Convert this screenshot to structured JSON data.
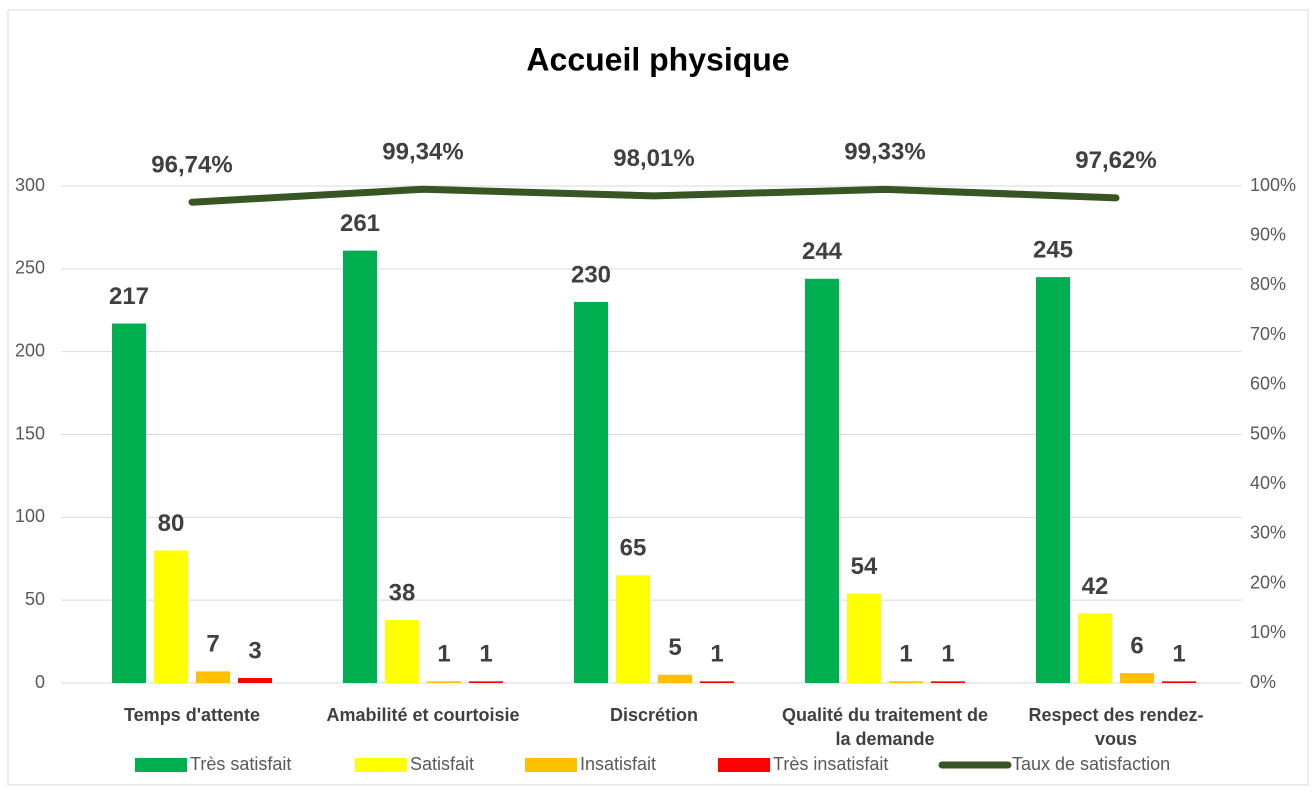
{
  "chart_data": {
    "type": "bar",
    "title": "Accueil physique",
    "categories": [
      "Temps d'attente",
      "Amabilité et courtoisie",
      "Discrétion",
      "Qualité du traitement de la demande",
      "Respect des rendez-vous"
    ],
    "series": [
      {
        "name": "Très satisfait",
        "color": "#00b050",
        "values": [
          217,
          261,
          230,
          244,
          245
        ]
      },
      {
        "name": "Satisfait",
        "color": "#ffff00",
        "values": [
          80,
          38,
          65,
          54,
          42
        ]
      },
      {
        "name": "Insatisfait",
        "color": "#ffc000",
        "values": [
          7,
          1,
          5,
          1,
          6
        ]
      },
      {
        "name": "Très insatisfait",
        "color": "#ff0000",
        "values": [
          3,
          1,
          1,
          1,
          1
        ]
      },
      {
        "name": "Taux de satisfaction",
        "color": "#375623",
        "type": "line",
        "axis": "y2",
        "values": [
          96.74,
          99.34,
          98.01,
          99.33,
          97.62
        ],
        "value_labels": [
          "96,74%",
          "99,34%",
          "98,01%",
          "99,33%",
          "97,62%"
        ]
      }
    ],
    "ylim": [
      0,
      300
    ],
    "yticks": [
      0,
      50,
      100,
      150,
      200,
      250,
      300
    ],
    "y2lim": [
      0,
      100
    ],
    "y2ticks": [
      {
        "value": 0,
        "label": "0%"
      },
      {
        "value": 10,
        "label": "10%"
      },
      {
        "value": 20,
        "label": "20%"
      },
      {
        "value": 30,
        "label": "30%"
      },
      {
        "value": 40,
        "label": "40%"
      },
      {
        "value": 50,
        "label": "50%"
      },
      {
        "value": 60,
        "label": "60%"
      },
      {
        "value": 70,
        "label": "70%"
      },
      {
        "value": 80,
        "label": "80%"
      },
      {
        "value": 90,
        "label": "90%"
      },
      {
        "value": 100,
        "label": "100%"
      }
    ],
    "grid": true,
    "legend": "bottom"
  }
}
